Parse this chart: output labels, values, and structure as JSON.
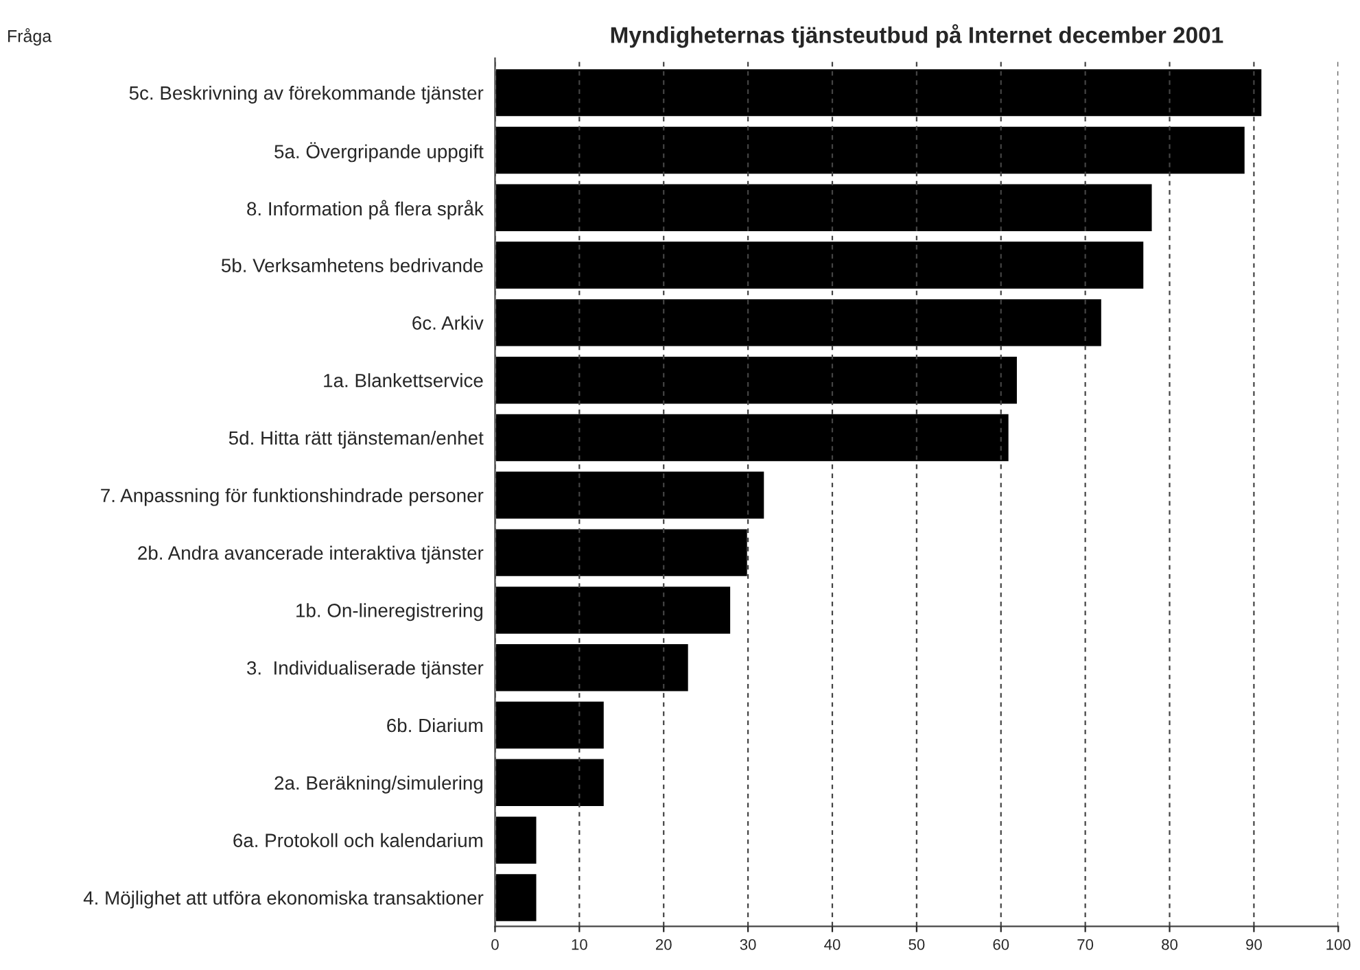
{
  "chart_data": {
    "type": "bar",
    "orientation": "horizontal",
    "title": "Myndigheternas tjänsteutbud på Internet december 2001",
    "ylabel": "Fråga",
    "categories": [
      "5c. Beskrivning av förekommande tjänster",
      "5a. Övergripande uppgift",
      "8. Information på flera språk",
      "5b. Verksamhetens bedrivande",
      "6c. Arkiv",
      "1a. Blankettservice",
      "5d. Hitta rätt tjänsteman/enhet",
      "7. Anpassning för funktionshindrade personer",
      "2b. Andra avancerade interaktiva tjänster",
      "1b. On-lineregistrering",
      "3.  Individualiserade tjänster",
      "6b. Diarium",
      "2a. Beräkning/simulering",
      "6a. Protokoll och kalendarium",
      "4. Möjlighet att utföra ekonomiska transaktioner"
    ],
    "values": [
      91,
      89,
      78,
      77,
      72,
      62,
      61,
      32,
      30,
      28,
      23,
      13,
      13,
      5,
      5
    ],
    "color": "#000000",
    "xlim": [
      0,
      100
    ],
    "xticks": [
      0,
      10,
      20,
      30,
      40,
      50,
      60,
      70,
      80,
      90,
      100
    ],
    "grid": "x",
    "line_style": "dashed"
  }
}
